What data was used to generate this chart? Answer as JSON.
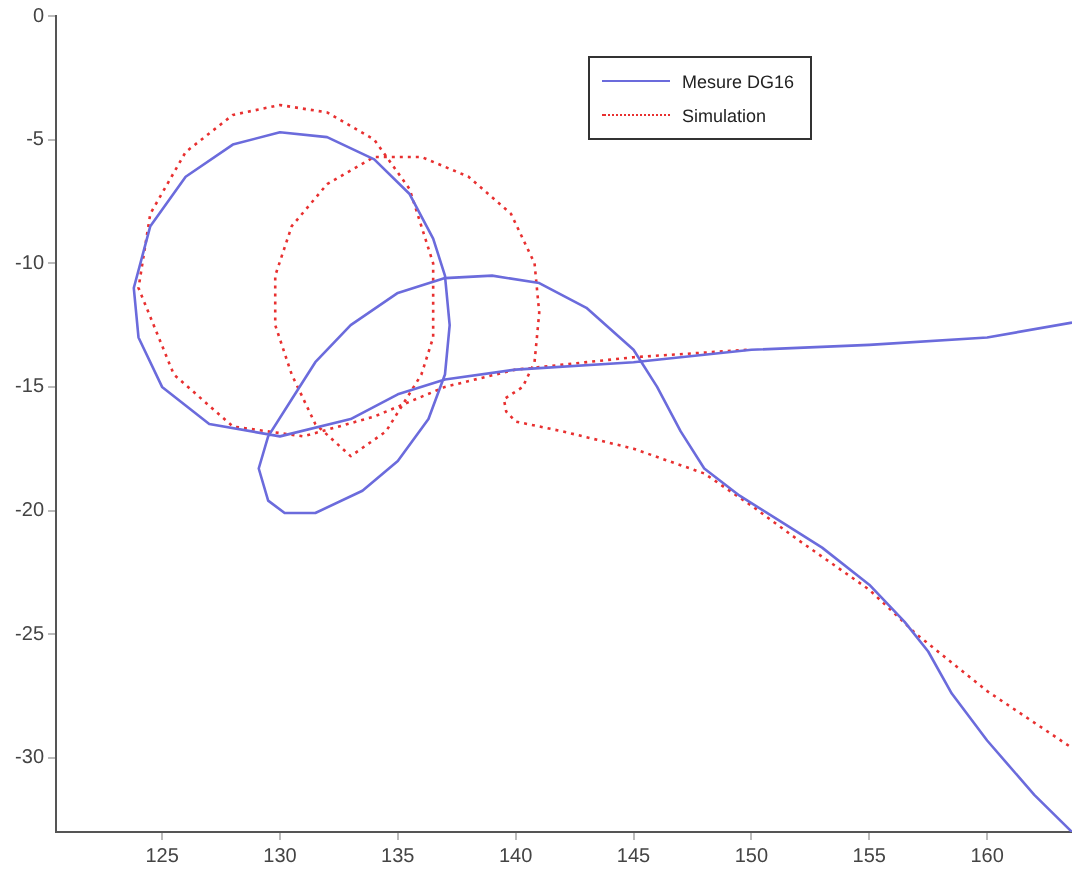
{
  "chart_data": {
    "type": "line",
    "xlim": [
      120.5,
      163.6
    ],
    "ylim": [
      -33,
      0
    ],
    "xticks": [
      125,
      130,
      135,
      140,
      145,
      150,
      155,
      160
    ],
    "yticks": [
      -30,
      -25,
      -20,
      -15,
      -10,
      -5,
      0
    ],
    "grid": false,
    "legend": "top right",
    "marker": "none",
    "series": [
      {
        "name": "Mesure DG16",
        "color": "#6b6bdc",
        "line_style": "solid",
        "x": [
          163.6,
          160,
          155,
          150,
          145,
          140,
          137,
          135,
          133,
          130,
          127,
          125,
          124,
          123.8,
          124.5,
          126,
          128,
          130,
          132,
          134,
          135.5,
          136.5,
          137,
          137.2,
          137,
          136.3,
          135,
          133.5,
          131.5,
          130.2,
          129.5,
          129.1,
          129.5,
          130.5,
          131.5,
          133,
          135,
          137,
          139,
          141,
          143,
          145,
          146,
          147,
          148,
          149.5,
          151,
          153,
          155,
          156.5,
          157.5,
          158.5,
          160,
          162,
          163.6
        ],
        "values": [
          -12.4,
          -13,
          -13.3,
          -13.5,
          -14,
          -14.3,
          -14.7,
          -15.3,
          -16.3,
          -17,
          -16.5,
          -15,
          -13,
          -11,
          -8.5,
          -6.5,
          -5.2,
          -4.7,
          -4.9,
          -5.8,
          -7.2,
          -9,
          -10.5,
          -12.5,
          -14.5,
          -16.3,
          -18,
          -19.2,
          -20.1,
          -20.1,
          -19.6,
          -18.3,
          -17,
          -15.5,
          -14,
          -12.5,
          -11.2,
          -10.6,
          -10.5,
          -10.8,
          -11.8,
          -13.5,
          -15,
          -16.8,
          -18.3,
          -19.4,
          -20.3,
          -21.5,
          -23,
          -24.5,
          -25.7,
          -27.4,
          -29.3,
          -31.5,
          -33
        ]
      },
      {
        "name": "Simulation",
        "color": "#e83030",
        "line_style": "dotted",
        "x": [
          149.8,
          145,
          140,
          137,
          134,
          131,
          128,
          125.5,
          124,
          124.5,
          126,
          128,
          130,
          132,
          134,
          135.5,
          136.5,
          136.5,
          136,
          134.5,
          133,
          131.5,
          130.5,
          129.8,
          129.8,
          130.5,
          132,
          134,
          136,
          138,
          139.8,
          140.8,
          141,
          140.8,
          140.3,
          139.5,
          139.6,
          140,
          142,
          145,
          148,
          150,
          152,
          155,
          157,
          160,
          163.6
        ],
        "values": [
          -13.5,
          -13.8,
          -14.3,
          -15,
          -16.2,
          -17,
          -16.6,
          -14.5,
          -11,
          -8,
          -5.5,
          -4,
          -3.6,
          -3.9,
          -5,
          -7,
          -10,
          -13,
          -14.5,
          -16.8,
          -17.8,
          -16.5,
          -14.5,
          -12.5,
          -10.5,
          -8.5,
          -6.8,
          -5.7,
          -5.7,
          -6.5,
          -8,
          -10,
          -12,
          -14,
          -15,
          -15.5,
          -16,
          -16.4,
          -16.8,
          -17.5,
          -18.5,
          -19.8,
          -21.2,
          -23.2,
          -25,
          -27.3,
          -29.6
        ]
      }
    ]
  }
}
